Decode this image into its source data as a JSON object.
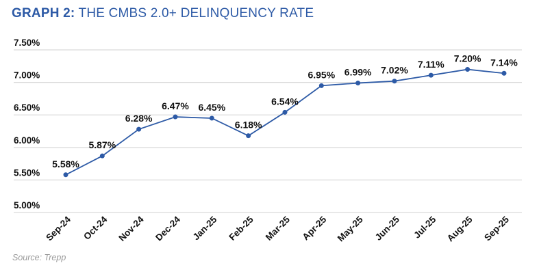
{
  "title_prefix": "GRAPH 2:",
  "title_rest": " THE CMBS 2.0+ DELINQUENCY RATE",
  "source": "Source: Trepp",
  "colors": {
    "series": "#2d5aa6",
    "title": "#2d5aa6",
    "grid": "#d9d9d9"
  },
  "chart_data": {
    "type": "line",
    "title": "GRAPH 2: THE CMBS 2.0+ DELINQUENCY RATE",
    "xlabel": "",
    "ylabel": "",
    "ylim": [
      5.0,
      7.5
    ],
    "yticks": [
      "5.00%",
      "5.50%",
      "6.00%",
      "6.50%",
      "7.00%",
      "7.50%"
    ],
    "ytick_values": [
      5.0,
      5.5,
      6.0,
      6.5,
      7.0,
      7.5
    ],
    "grid": true,
    "legend": "none",
    "categories": [
      "Sep-24",
      "Oct-24",
      "Nov-24",
      "Dec-24",
      "Jan-25",
      "Feb-25",
      "Mar-25",
      "Apr-25",
      "May-25",
      "Jun-25",
      "Jul-25",
      "Aug-25",
      "Sep-25"
    ],
    "values": [
      5.58,
      5.87,
      6.28,
      6.47,
      6.45,
      6.18,
      6.54,
      6.95,
      6.99,
      7.02,
      7.11,
      7.2,
      7.14
    ],
    "data_labels": [
      "5.58%",
      "5.87%",
      "6.28%",
      "6.47%",
      "6.45%",
      "6.18%",
      "6.54%",
      "6.95%",
      "6.99%",
      "7.02%",
      "7.11%",
      "7.20%",
      "7.14%"
    ]
  }
}
